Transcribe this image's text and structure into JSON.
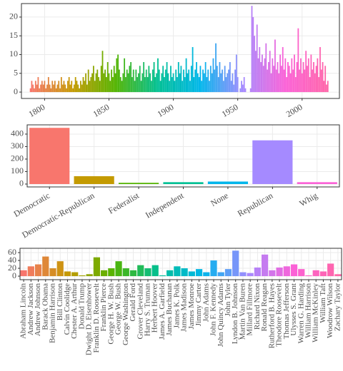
{
  "chart_data": [
    {
      "type": "bar",
      "x": [
        1789,
        1790,
        1791,
        1792,
        1793,
        1794,
        1795,
        1796,
        1797,
        1798,
        1799,
        1800,
        1801,
        1802,
        1803,
        1804,
        1805,
        1806,
        1807,
        1808,
        1809,
        1810,
        1811,
        1812,
        1813,
        1814,
        1815,
        1816,
        1817,
        1818,
        1819,
        1820,
        1821,
        1822,
        1823,
        1824,
        1825,
        1826,
        1827,
        1828,
        1829,
        1830,
        1831,
        1832,
        1833,
        1834,
        1835,
        1836,
        1837,
        1838,
        1839,
        1840,
        1841,
        1842,
        1843,
        1844,
        1845,
        1846,
        1847,
        1848,
        1849,
        1850,
        1851,
        1852,
        1853,
        1854,
        1855,
        1856,
        1857,
        1858,
        1859,
        1860,
        1861,
        1862,
        1863,
        1864,
        1865,
        1866,
        1867,
        1868,
        1869,
        1870,
        1871,
        1872,
        1873,
        1874,
        1875,
        1876,
        1877,
        1878,
        1879,
        1880,
        1881,
        1882,
        1883,
        1884,
        1885,
        1886,
        1887,
        1888,
        1889,
        1890,
        1891,
        1892,
        1893,
        1894,
        1895,
        1896,
        1897,
        1898,
        1899,
        1900,
        1901,
        1902,
        1903,
        1904,
        1905,
        1906,
        1907,
        1908,
        1909,
        1910,
        1911,
        1912,
        1913,
        1914,
        1915,
        1916,
        1917,
        1918,
        1919,
        1920,
        1921,
        1922,
        1923,
        1924,
        1925,
        1926,
        1927,
        1928,
        1929,
        1930,
        1931,
        1932,
        1933,
        1934,
        1935,
        1936,
        1937,
        1938,
        1939,
        1940,
        1941,
        1942,
        1943,
        1944,
        1945,
        1946,
        1947,
        1948,
        1949,
        1950,
        1951,
        1952,
        1953,
        1954,
        1955,
        1956,
        1957,
        1958,
        1959,
        1960,
        1961,
        1962,
        1963,
        1964,
        1965,
        1966,
        1967,
        1968,
        1969,
        1970,
        1971,
        1972,
        1973,
        1974,
        1975,
        1976,
        1977,
        1978,
        1979,
        1980,
        1981,
        1982,
        1983,
        1984,
        1985,
        1986,
        1987,
        1988,
        1989,
        1990,
        1991,
        1992,
        1993,
        1994,
        1995,
        1996,
        1997,
        1998,
        1999,
        2000,
        2001,
        2002,
        2003,
        2004,
        2005,
        2006,
        2007,
        2008,
        2009,
        2010,
        2011,
        2012,
        2013,
        2014,
        2015,
        2016,
        2017,
        2018,
        2019,
        2020
      ],
      "values": [
        1,
        3,
        2,
        1,
        3,
        2,
        4,
        1,
        2,
        3,
        2,
        3,
        1,
        2,
        4,
        2,
        1,
        3,
        2,
        3,
        1,
        2,
        3,
        1,
        4,
        2,
        3,
        2,
        1,
        3,
        4,
        2,
        3,
        1,
        2,
        4,
        3,
        2,
        1,
        3,
        2,
        4,
        3,
        5,
        2,
        6,
        3,
        4,
        5,
        7,
        3,
        5,
        6,
        4,
        3,
        7,
        11,
        5,
        6,
        4,
        8,
        5,
        3,
        6,
        4,
        7,
        5,
        9,
        10,
        6,
        4,
        3,
        5,
        9,
        4,
        6,
        5,
        7,
        8,
        4,
        6,
        3,
        6,
        4,
        5,
        7,
        3,
        5,
        8,
        4,
        6,
        4,
        7,
        5,
        3,
        6,
        8,
        4,
        5,
        9,
        6,
        3,
        5,
        7,
        4,
        6,
        8,
        5,
        3,
        7,
        4,
        5,
        3,
        6,
        4,
        8,
        5,
        7,
        3,
        6,
        4,
        9,
        5,
        6,
        3,
        7,
        12,
        4,
        6,
        8,
        5,
        4,
        7,
        3,
        6,
        5,
        8,
        4,
        6,
        3,
        7,
        5,
        9,
        6,
        13,
        7,
        4,
        8,
        5,
        6,
        3,
        7,
        4,
        5,
        6,
        8,
        3,
        5,
        2,
        6,
        10,
        4,
        0,
        1,
        3,
        2,
        4,
        1,
        0,
        0,
        0,
        1,
        23,
        20,
        15,
        11,
        18,
        9,
        12,
        8,
        10,
        7,
        9,
        13,
        6,
        8,
        11,
        5,
        9,
        7,
        14,
        6,
        8,
        5,
        10,
        7,
        12,
        6,
        9,
        4,
        8,
        7,
        5,
        9,
        6,
        10,
        4,
        8,
        17,
        6,
        9,
        5,
        8,
        6,
        11,
        7,
        9,
        4,
        10,
        6,
        8,
        5,
        7,
        9,
        4,
        12,
        6,
        8,
        3,
        7,
        2,
        3
      ],
      "gradient": [
        "#F8766D",
        "#C49A00",
        "#53B400",
        "#00C094",
        "#00B6EB",
        "#A58AFF",
        "#FB61D7",
        "#FF66A8"
      ],
      "xlim": [
        1782,
        2029
      ],
      "xticks": [
        1800,
        1850,
        1900,
        1950,
        2000
      ],
      "ylim": [
        -1.7,
        23.6
      ],
      "yticks": [
        0,
        5,
        10,
        15,
        20
      ],
      "grid": true
    },
    {
      "type": "bar",
      "categories": [
        "Democratic",
        "Democratic-Republican",
        "Federalist",
        "Independent",
        "None",
        "Republican",
        "Whig"
      ],
      "values": [
        450,
        63,
        10,
        15,
        20,
        350,
        15
      ],
      "colors": [
        "#F8766D",
        "#C49A00",
        "#53B400",
        "#00C094",
        "#00B6EB",
        "#A58AFF",
        "#FB61D7"
      ],
      "ylim": [
        -23,
        474
      ],
      "yticks": [
        0,
        100,
        200,
        300,
        400
      ],
      "grid": true
    },
    {
      "type": "bar",
      "categories": [
        "Abraham Lincoln",
        "Andrew Jackson",
        "Andrew Johnson",
        "Barack Obama",
        "Benjamin Harrison",
        "Bill Clinton",
        "Calvin Coolidge",
        "Chester A. Arthur",
        "Donald Trump",
        "Dwight D. Eisenhower",
        "Franklin D. Roosevelt",
        "Franklin Pierce",
        "George H. W. Bush",
        "George W. Bush",
        "George Washington",
        "Gerald Ford",
        "Grover Cleveland",
        "Harry S. Truman",
        "Herbert Hoover",
        "James A. Garfield",
        "James Buchanan",
        "James K. Polk",
        "James Madison",
        "James Monroe",
        "Jimmy Carter",
        "John Adams",
        "John F. Kennedy",
        "John Quincy Adams",
        "John Tyler",
        "Lyndon B. Johnson",
        "Martin Van Buren",
        "Millard Fillmore",
        "Richard Nixon",
        "Ronald Reagan",
        "Rutherford B. Hayes",
        "Theodore Roosevelt",
        "Thomas Jefferson",
        "Ulysses S. Grant",
        "Warren G. Harding",
        "William Harrison",
        "William McKinley",
        "William Taft",
        "Woodrow Wilson",
        "Zachary Taylor"
      ],
      "values": [
        15,
        25,
        30,
        50,
        20,
        38,
        12,
        10,
        2,
        5,
        48,
        15,
        20,
        38,
        20,
        15,
        28,
        20,
        28,
        2,
        15,
        25,
        20,
        12,
        18,
        10,
        40,
        10,
        18,
        65,
        10,
        8,
        22,
        55,
        15,
        22,
        25,
        30,
        18,
        2,
        15,
        12,
        32,
        5
      ],
      "gradient": [
        "#F8766D",
        "#C49A00",
        "#53B400",
        "#00C094",
        "#00B6EB",
        "#A58AFF",
        "#FB61D7",
        "#FF66A8"
      ],
      "ylim": [
        -9,
        71
      ],
      "yticks": [
        0,
        20,
        40,
        60
      ],
      "grid": true
    }
  ]
}
